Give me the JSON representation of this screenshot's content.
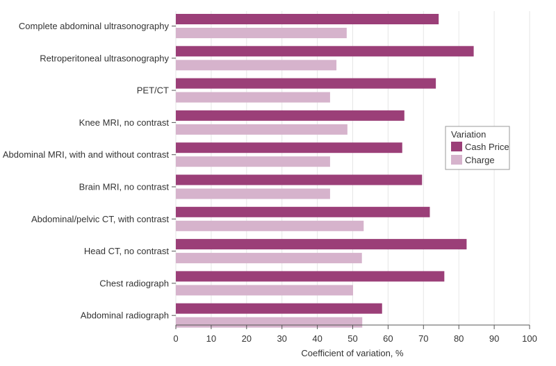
{
  "chart_data": {
    "type": "bar",
    "orientation": "horizontal",
    "categories": [
      "Complete abdominal ultrasonography",
      "Retroperitoneal ultrasonography",
      "PET/CT",
      "Knee MRI, no contrast",
      "Abdominal MRI, with and without contrast",
      "Brain MRI, no contrast",
      "Abdominal/pelvic CT, with contrast",
      "Head CT, no contrast",
      "Chest radiograph",
      "Abdominal radiograph"
    ],
    "series": [
      {
        "name": "Cash Price",
        "color": "#9b3f78",
        "values": [
          74.3,
          84.2,
          73.5,
          64.6,
          64.0,
          69.6,
          71.8,
          82.2,
          75.9,
          58.3
        ]
      },
      {
        "name": "Charge",
        "color": "#d6b3cc",
        "values": [
          48.3,
          45.4,
          43.6,
          48.5,
          43.6,
          43.6,
          53.1,
          52.6,
          50.1,
          52.7
        ]
      }
    ],
    "xlabel": "Coefficient of variation, %",
    "xlim": [
      0,
      100
    ],
    "xticks": [
      0,
      10,
      20,
      30,
      40,
      50,
      60,
      70,
      80,
      90,
      100
    ],
    "legend": {
      "title": "Variation",
      "position": "right"
    },
    "grid": true
  }
}
